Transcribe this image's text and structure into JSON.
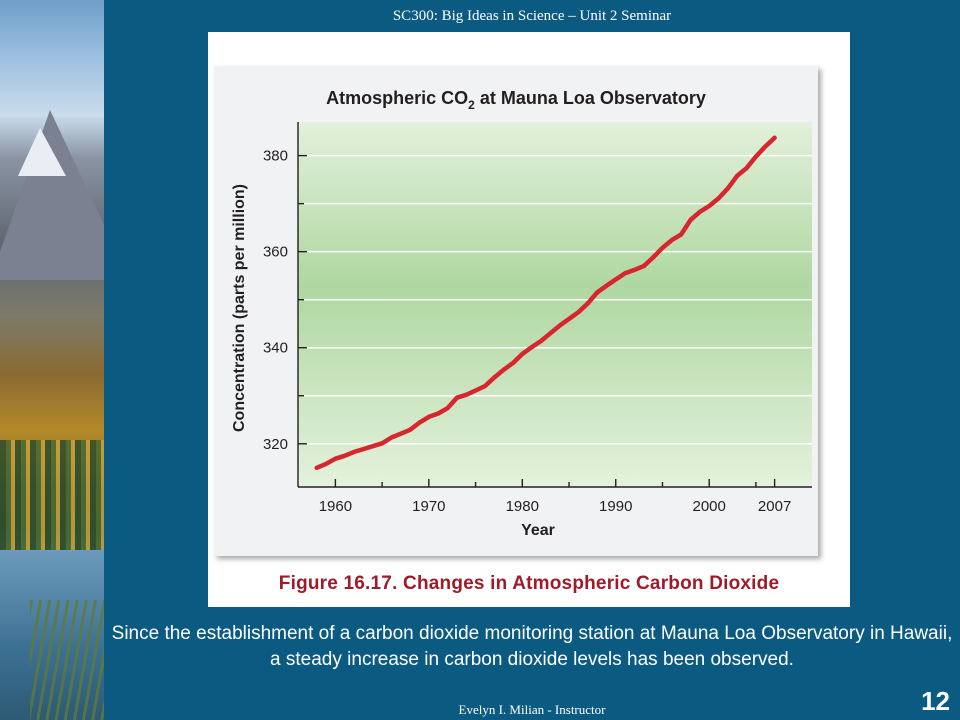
{
  "slide": {
    "header": "SC300: Big Ideas in Science – Unit 2 Seminar",
    "caption": "Figure 16.17. Changes in Atmospheric Carbon Dioxide",
    "body_text": "Since the establishment of a carbon dioxide monitoring station at Mauna Loa Observatory in Hawaii, a steady increase in carbon dioxide levels has been observed.",
    "footer": "Evelyn I. Milian - Instructor",
    "page_number": "12"
  },
  "chart_data": {
    "type": "line",
    "title_prefix": "Atmospheric CO",
    "title_subscript": "2",
    "title_suffix": " at Mauna Loa Observatory",
    "xlabel": "Year",
    "ylabel": "Concentration (parts per million)",
    "xlim": [
      1956,
      2011
    ],
    "ylim": [
      311,
      387
    ],
    "xticks": [
      1960,
      1970,
      1980,
      1990,
      2000,
      2007
    ],
    "yticks": [
      320,
      340,
      360,
      380
    ],
    "grid": true,
    "line_color": "#d7262e",
    "series": [
      {
        "x": [
          1958,
          1959,
          1960,
          1961,
          1962,
          1963,
          1964,
          1965,
          1966,
          1967,
          1968,
          1969,
          1970,
          1971,
          1972,
          1973,
          1974,
          1975,
          1976,
          1977,
          1978,
          1979,
          1980,
          1981,
          1982,
          1983,
          1984,
          1985,
          1986,
          1987,
          1988,
          1989,
          1990,
          1991,
          1992,
          1993,
          1994,
          1995,
          1996,
          1997,
          1998,
          1999,
          2000,
          2001,
          2002,
          2003,
          2004,
          2005,
          2006,
          2007
        ],
        "values": [
          315.0,
          315.8,
          316.9,
          317.5,
          318.3,
          318.9,
          319.5,
          320.1,
          321.3,
          322.1,
          322.9,
          324.4,
          325.6,
          326.3,
          327.4,
          329.6,
          330.2,
          331.1,
          332.0,
          333.8,
          335.4,
          336.8,
          338.7,
          340.1,
          341.4,
          343.0,
          344.6,
          346.0,
          347.4,
          349.2,
          351.5,
          352.9,
          354.2,
          355.5,
          356.2,
          357.0,
          358.8,
          360.8,
          362.4,
          363.6,
          366.6,
          368.3,
          369.5,
          371.1,
          373.2,
          375.8,
          377.4,
          379.8,
          381.9,
          383.7
        ]
      }
    ]
  },
  "colors": {
    "background": "#0b5a82",
    "caption": "#9e1b2a",
    "plot_band_top": "#e1f0da",
    "plot_band_mid": "#aed6a0"
  }
}
